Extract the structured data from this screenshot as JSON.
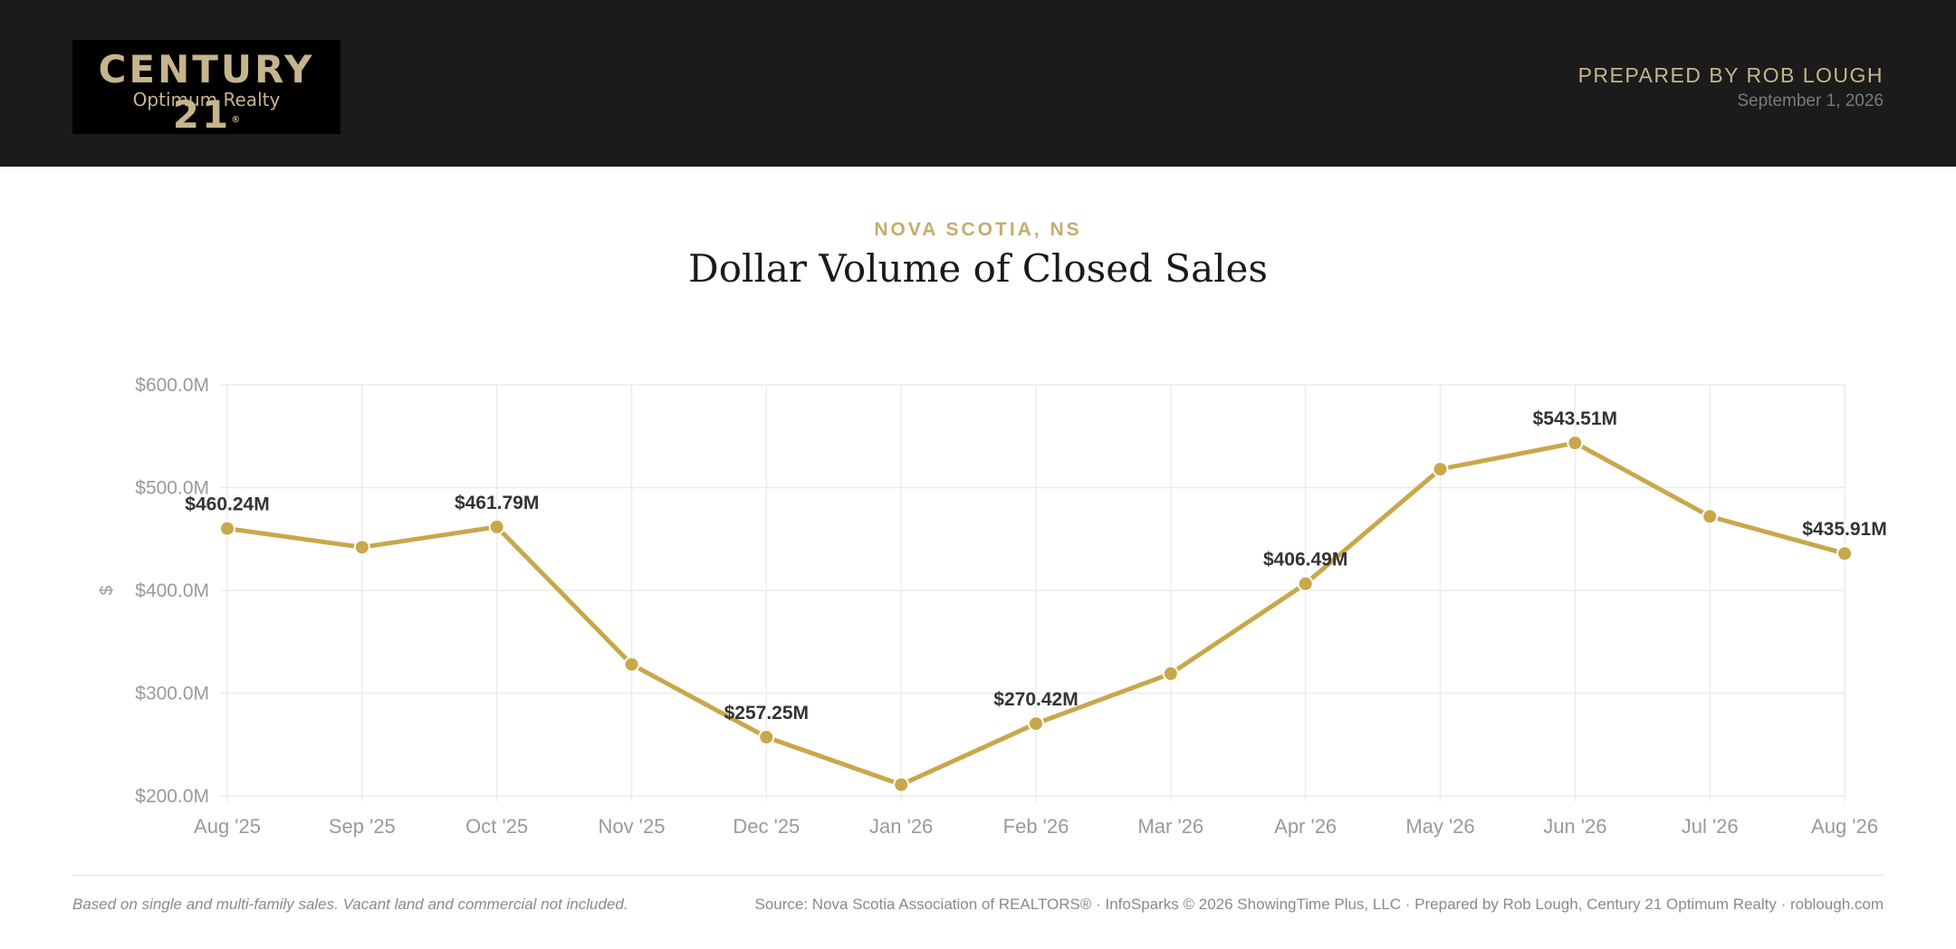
{
  "header": {
    "logo_brand": "CENTURY 21",
    "logo_registered": "®",
    "logo_sub": "Optimum Realty",
    "prepared_by": "PREPARED BY ROB LOUGH",
    "date": "September 1, 2026"
  },
  "report": {
    "region": "NOVA SCOTIA, NS",
    "title": "Dollar Volume of Closed Sales"
  },
  "colors": {
    "header_bg": "#1b1b1b",
    "gold": "#c6ab6d",
    "line": "#c9a74b",
    "grid": "#ececec",
    "axis_text": "#9a9a9a",
    "label_text": "#333333"
  },
  "chart_data": {
    "type": "line",
    "title": "Dollar Volume of Closed Sales",
    "xlabel": "",
    "ylabel": "$",
    "ylim": [
      200,
      600
    ],
    "y_unit": "M",
    "y_ticks": [
      200,
      300,
      400,
      500,
      600
    ],
    "y_tick_labels": [
      "$200.0M",
      "$300.0M",
      "$400.0M",
      "$500.0M",
      "$600.0M"
    ],
    "grid": true,
    "categories": [
      "Aug '25",
      "Sep '25",
      "Oct '25",
      "Nov '25",
      "Dec '25",
      "Jan '26",
      "Feb '26",
      "Mar '26",
      "Apr '26",
      "May '26",
      "Jun '26",
      "Jul '26",
      "Aug '26"
    ],
    "series": [
      {
        "values": [
          460.24,
          442,
          461.79,
          328,
          257.25,
          211,
          270.42,
          319,
          406.49,
          518,
          543.51,
          472,
          435.91
        ]
      }
    ],
    "data_labels": [
      {
        "index": 0,
        "text": "$460.24M"
      },
      {
        "index": 2,
        "text": "$461.79M"
      },
      {
        "index": 4,
        "text": "$257.25M"
      },
      {
        "index": 6,
        "text": "$270.42M"
      },
      {
        "index": 8,
        "text": "$406.49M"
      },
      {
        "index": 10,
        "text": "$543.51M"
      },
      {
        "index": 12,
        "text": "$435.91M"
      }
    ]
  },
  "footer": {
    "note": "Based on single and multi-family sales. Vacant land and commercial not included.",
    "source": "Source: Nova Scotia Association of REALTORS® · InfoSparks © 2026 ShowingTime Plus, LLC · Prepared by Rob Lough, Century 21 Optimum Realty · roblough.com"
  }
}
